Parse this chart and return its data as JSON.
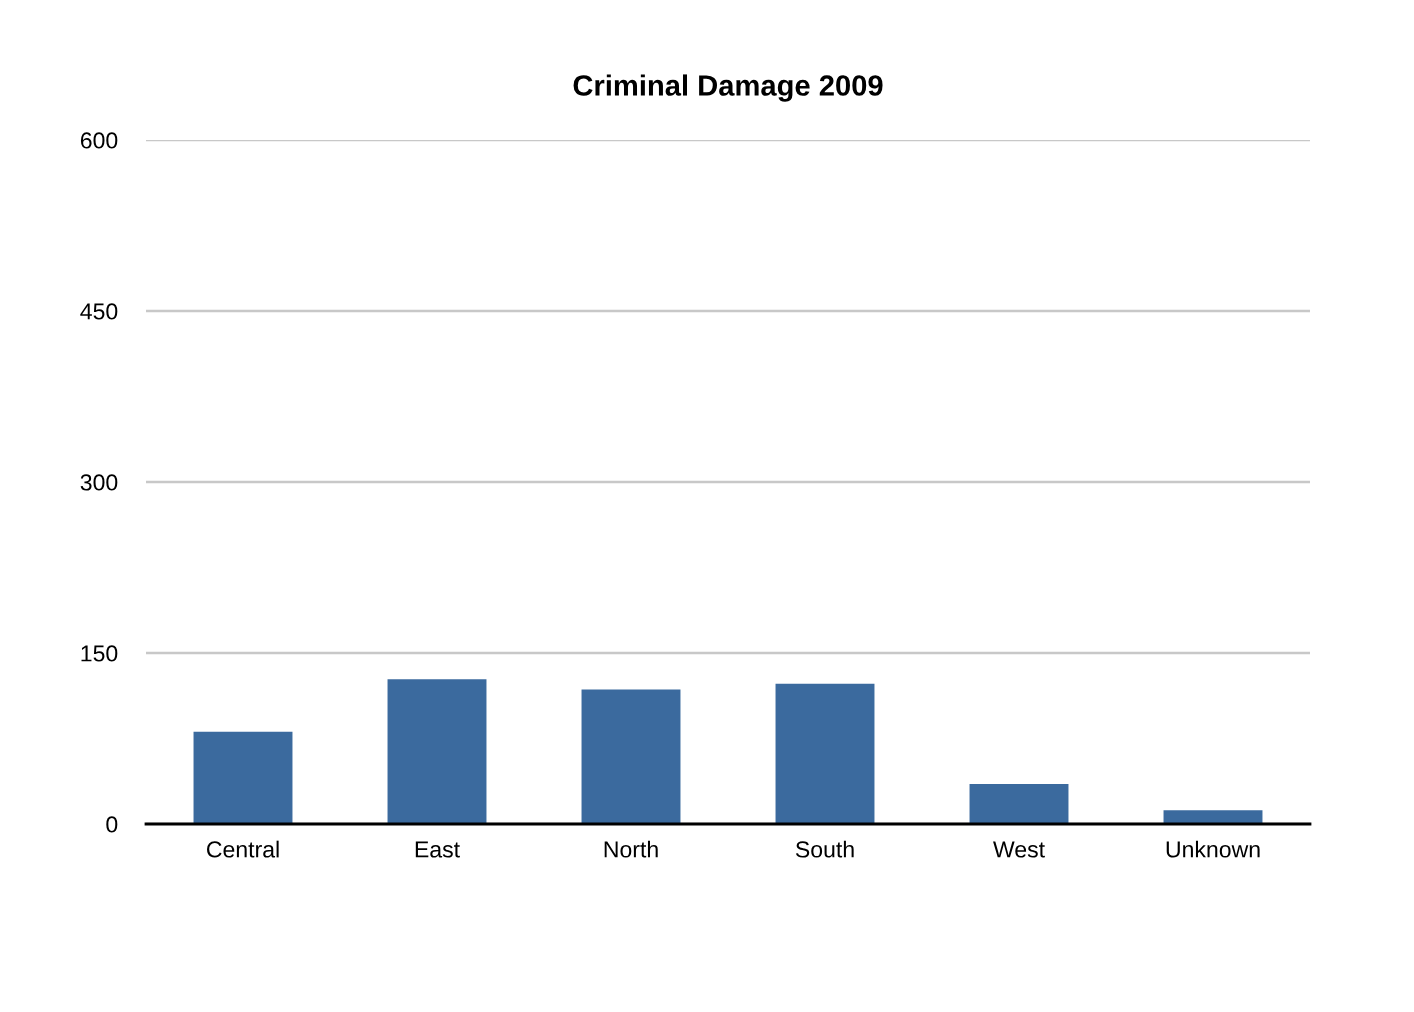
{
  "chart_data": {
    "type": "bar",
    "title": "Criminal Damage 2009",
    "categories": [
      "Central",
      "East",
      "North",
      "South",
      "West",
      "Unknown"
    ],
    "values": [
      81,
      127,
      118,
      123,
      35,
      12
    ],
    "color": "#3b6a9e",
    "ylim": [
      0,
      600
    ],
    "yticks": [
      0,
      150,
      300,
      450,
      600
    ],
    "grid": "y"
  }
}
